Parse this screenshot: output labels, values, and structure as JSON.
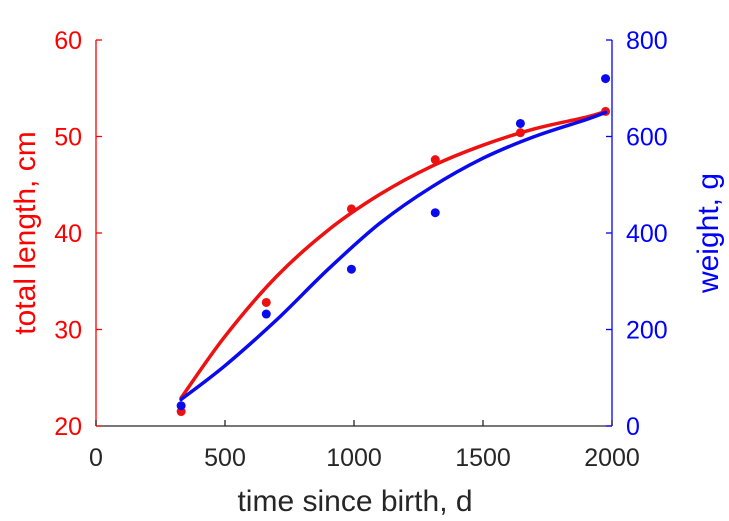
{
  "chart_data": {
    "type": "scatter",
    "title": "",
    "xlabel": "time since birth, d",
    "ylabel_left": "total length, cm",
    "ylabel_right": "weight, g",
    "xlim": [
      0,
      2000
    ],
    "ylim_left": [
      20,
      60
    ],
    "ylim_right": [
      0,
      800
    ],
    "xticks": [
      0,
      500,
      1000,
      1500,
      2000
    ],
    "yticks_left": [
      20,
      30,
      40,
      50,
      60
    ],
    "yticks_right": [
      0,
      200,
      400,
      600,
      800
    ],
    "grid": false,
    "colors": {
      "left_axis": "#ff0000",
      "right_axis": "#0000ff",
      "x_axis": "#262626",
      "length_series": "#ee1111",
      "weight_series": "#0a0aee"
    },
    "series": [
      {
        "axis": "left",
        "color": "#ee1111",
        "points": [
          {
            "x": 330,
            "y": 21.5
          },
          {
            "x": 660,
            "y": 32.8
          },
          {
            "x": 990,
            "y": 42.5
          },
          {
            "x": 1315,
            "y": 47.6
          },
          {
            "x": 1645,
            "y": 50.4
          },
          {
            "x": 1975,
            "y": 52.6
          }
        ],
        "fit": [
          [
            330,
            22.9
          ],
          [
            500,
            29.3
          ],
          [
            700,
            35.5
          ],
          [
            900,
            40.3
          ],
          [
            1100,
            44.0
          ],
          [
            1300,
            46.9
          ],
          [
            1500,
            49.1
          ],
          [
            1700,
            50.8
          ],
          [
            1900,
            52.0
          ],
          [
            1975,
            52.6
          ]
        ]
      },
      {
        "axis": "right",
        "color": "#0a0aee",
        "points": [
          {
            "x": 330,
            "y": 42
          },
          {
            "x": 660,
            "y": 232
          },
          {
            "x": 990,
            "y": 325
          },
          {
            "x": 1315,
            "y": 442
          },
          {
            "x": 1645,
            "y": 627
          },
          {
            "x": 1975,
            "y": 720
          }
        ],
        "fit": [
          [
            330,
            55
          ],
          [
            500,
            125
          ],
          [
            700,
            220
          ],
          [
            900,
            325
          ],
          [
            1100,
            420
          ],
          [
            1300,
            495
          ],
          [
            1500,
            555
          ],
          [
            1700,
            600
          ],
          [
            1900,
            635
          ],
          [
            1975,
            650
          ]
        ]
      }
    ]
  }
}
